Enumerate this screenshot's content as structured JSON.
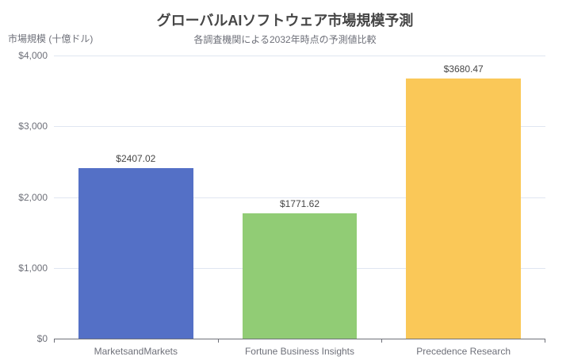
{
  "header": {
    "title": "グローバルAIソフトウェア市場規模予測",
    "subtitle": "各調査機関による2032年時点の予測値比較"
  },
  "chart_data": {
    "type": "bar",
    "title": "グローバルAIソフトウェア市場規模予測",
    "subtitle": "各調査機関による2032年時点の予測値比較",
    "categories": [
      "MarketsandMarkets",
      "Fortune Business Insights",
      "Precedence Research"
    ],
    "values": [
      2407.02,
      1771.62,
      3680.47
    ],
    "value_labels": [
      "$2407.02",
      "$1771.62",
      "$3680.47"
    ],
    "bar_colors": [
      "#5470c6",
      "#91cc75",
      "#fac858"
    ],
    "xlabel": "",
    "ylabel": "市場規模 (十億ドル)",
    "ylim": [
      0,
      4000
    ],
    "y_tick_values": [
      0,
      1000,
      2000,
      3000,
      4000
    ],
    "y_tick_labels": [
      "$0",
      "$1,000",
      "$2,000",
      "$3,000",
      "$4,000"
    ],
    "grid": true,
    "legend": "none",
    "bar_width_ratio": 0.7
  },
  "style": {
    "background": "#ffffff",
    "title_color": "#464646",
    "subtitle_color": "#6e7079",
    "axis_name_color": "#6e7079",
    "grid_color": "#e0e6f1",
    "axis_color": "#6e7079",
    "tick_label_color": "#6e7079",
    "value_label_color": "#464646"
  }
}
